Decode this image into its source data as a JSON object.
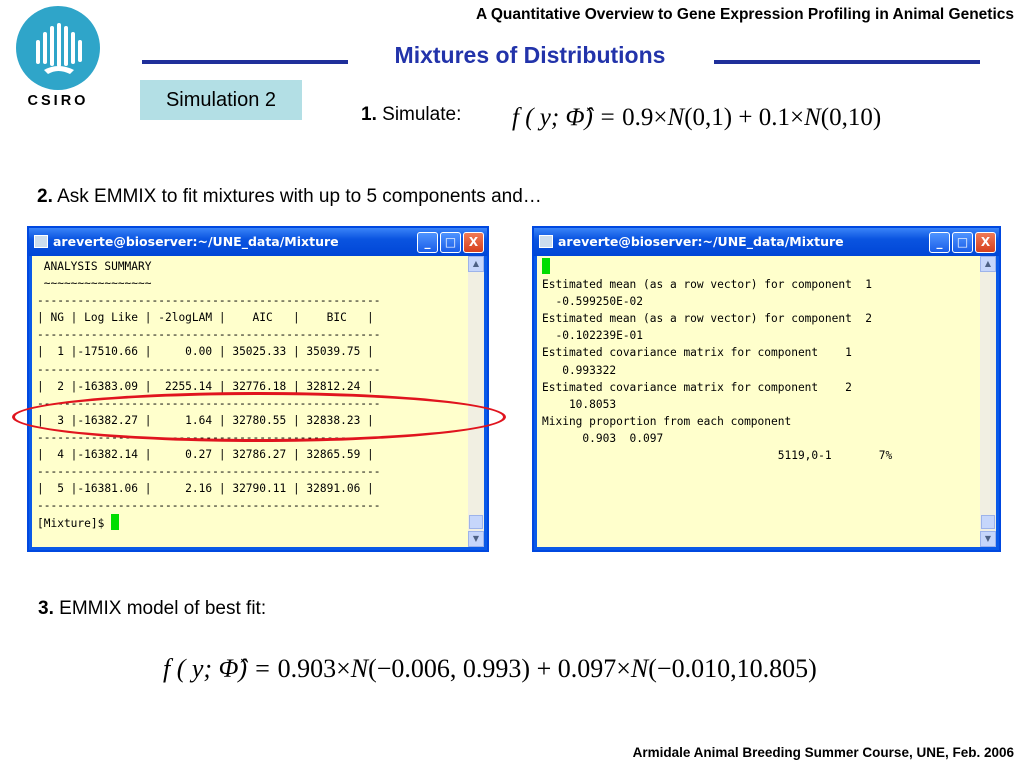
{
  "header": {
    "title": "A Quantitative Overview to Gene Expression Profiling in Animal Genetics"
  },
  "logo": {
    "text": "CSIRO"
  },
  "slide": {
    "title": "Mixtures of Distributions",
    "badge": "Simulation 2"
  },
  "step1": {
    "num": "1.",
    "text": "Simulate:"
  },
  "formula1": {
    "lhs": "f ( y; Φ̂) = ",
    "a": "0.9×",
    "n1": "N",
    "p1": "(0,1)",
    "plus": " + ",
    "b": "0.1×",
    "n2": "N",
    "p2": "(0,10)"
  },
  "step2": {
    "num": "2.",
    "text": "Ask EMMIX to fit mixtures with up to 5 components and…"
  },
  "window_left": {
    "title": "areverte@bioserver:~/UNE_data/Mixture",
    "lines": [
      " ANALYSIS SUMMARY",
      " ~~~~~~~~~~~~~~~~",
      "---------------------------------------------------",
      "| NG | Log Like | -2logLAM |    AIC   |    BIC   |",
      "---------------------------------------------------",
      "|  1 |-17510.66 |     0.00 | 35025.33 | 35039.75 |",
      "---------------------------------------------------",
      "|  2 |-16383.09 |  2255.14 | 32776.18 | 32812.24 |",
      "---------------------------------------------------",
      "|  3 |-16382.27 |     1.64 | 32780.55 | 32838.23 |",
      "---------------------------------------------------",
      "|  4 |-16382.14 |     0.27 | 32786.27 | 32865.59 |",
      "---------------------------------------------------",
      "|  5 |-16381.06 |     2.16 | 32790.11 | 32891.06 |",
      "---------------------------------------------------"
    ],
    "prompt": "[Mixture]$ "
  },
  "window_right": {
    "title": "areverte@bioserver:~/UNE_data/Mixture",
    "lines": [
      "",
      "Estimated mean (as a row vector) for component  1",
      "  -0.599250E-02",
      "",
      "Estimated mean (as a row vector) for component  2",
      "  -0.102239E-01",
      "",
      "Estimated covariance matrix for component    1",
      "   0.993322",
      "",
      "Estimated covariance matrix for component    2",
      "    10.8053",
      "",
      "Mixing proportion from each component",
      "      0.903  0.097",
      ""
    ],
    "status": "                                   5119,0-1       7%"
  },
  "window_buttons": {
    "minimize": "_",
    "maximize": "□",
    "close": "X"
  },
  "step3": {
    "num": "3.",
    "text": "EMMIX model of best fit:"
  },
  "formula2": {
    "lhs": "f ( y; Φ̂) = ",
    "a": "0.903×",
    "n1": "N",
    "p1": "(−0.006, 0.993)",
    "plus": " + ",
    "b": "0.097×",
    "n2": "N",
    "p2": "(−0.010,10.805)"
  },
  "footer": {
    "text": "Armidale Animal Breeding Summer Course, UNE, Feb. 2006"
  }
}
